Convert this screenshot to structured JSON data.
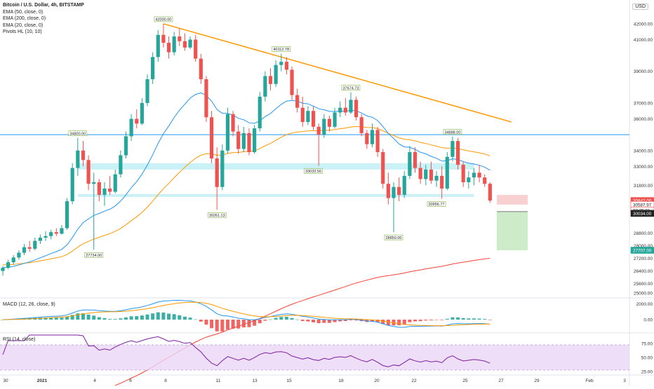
{
  "header": {
    "symbol_title": "Bitcoin / U.S. Dollar, 4h, BITSTAMP",
    "currency_button": "USD",
    "indicators": [
      "EMA (50, close, 0)",
      "EMA (200, close, 0)",
      "EMA (20, close, 0)",
      "Pivots HL (10, 10)"
    ]
  },
  "macd": {
    "label": "MACD (12, 26, close, 9)",
    "ticks": [
      "2000.00",
      "0.00"
    ]
  },
  "rsi": {
    "label": "RSI (14, close)",
    "ticks": [
      "75.00",
      "50.00",
      "25.00"
    ]
  },
  "colors": {
    "up": "#26a69a",
    "down": "#ef5350",
    "ema20": "#2196f3",
    "ema50": "#ff9800",
    "ema200": "#f44336",
    "trendline": "#ff9800",
    "hline": "#2196f3",
    "zone": "#b2ebf2",
    "rsi": "#7b1fa2",
    "rsi_band": "#ead6f5",
    "stop_zone": "#f8d0d0",
    "target_zone": "#cdebc9"
  },
  "chart_data": {
    "type": "candlestick",
    "title": "Bitcoin / U.S. Dollar, 4h, BITSTAMP",
    "y_ticks": [
      "42000.00",
      "41000.00",
      "39000.00",
      "37000.00",
      "36000.00",
      "34000.00",
      "33000.00",
      "31800.00",
      "28800.00",
      "28000.00",
      "27200.00",
      "26400.00",
      "25600.00",
      "25000.00"
    ],
    "ylim": [
      24700,
      43500
    ],
    "x_ticks": [
      "30",
      "2021",
      "4",
      "6",
      "8",
      "11",
      "13",
      "15",
      "18",
      "20",
      "22",
      "25",
      "27",
      "29",
      "Feb",
      "3"
    ],
    "price_labels": [
      {
        "value": 30842.0,
        "text": "30842.00",
        "bg": "#ef5350",
        "fg": "#ffffff"
      },
      {
        "value": 30587.97,
        "text": "30587.97",
        "bg": "#ffffff",
        "fg": "#222222",
        "border": "#ef5350"
      },
      {
        "value": 30230,
        "text": "02:25:01",
        "bg": "#ffffff",
        "fg": "#222222",
        "border": "#ef5350"
      },
      {
        "value": 30034.0,
        "text": "30034.00",
        "bg": "#222222",
        "fg": "#ffffff"
      },
      {
        "value": 27707.0,
        "text": "27707.00",
        "bg": "#26a69a",
        "fg": "#ffffff"
      }
    ],
    "pivot_labels": [
      {
        "x_index": 30,
        "value": 42000.0,
        "text": "42000.00",
        "pos": "above"
      },
      {
        "x_index": 52,
        "value": 40112.78,
        "text": "40112.78",
        "pos": "above"
      },
      {
        "x_index": 65,
        "value": 37674.73,
        "text": "37674.73",
        "pos": "above"
      },
      {
        "x_index": 84,
        "value": 34888.0,
        "text": "34888.00",
        "pos": "above"
      },
      {
        "x_index": 14,
        "value": 34800.0,
        "text": "34800.00",
        "pos": "above"
      },
      {
        "x_index": 17,
        "value": 27734.0,
        "text": "27734.00",
        "pos": "below"
      },
      {
        "x_index": 40,
        "value": 30261.13,
        "text": "30261.13",
        "pos": "below"
      },
      {
        "x_index": 58,
        "value": 33033.56,
        "text": "33033.56",
        "pos": "below"
      },
      {
        "x_index": 73,
        "value": 28850.0,
        "text": "28850.00",
        "pos": "below"
      },
      {
        "x_index": 81,
        "value": 30956.77,
        "text": "30956.77",
        "pos": "below"
      }
    ],
    "horizontal_line": 35000,
    "trendline": [
      {
        "x_index": 30,
        "value": 42000
      },
      {
        "x_index": 95,
        "value": 35800
      }
    ],
    "zones": [
      {
        "from": 32800,
        "to": 33200
      },
      {
        "from": 31100,
        "to": 31250
      }
    ],
    "position_tool": {
      "entry": 30587.97,
      "stop": 30842.0,
      "target": 27707.0
    },
    "candles": [
      {
        "o": 26400,
        "h": 26700,
        "l": 26100,
        "c": 26600
      },
      {
        "o": 26600,
        "h": 27100,
        "l": 26500,
        "c": 26950
      },
      {
        "o": 26950,
        "h": 27400,
        "l": 26800,
        "c": 27250
      },
      {
        "o": 27250,
        "h": 27700,
        "l": 27100,
        "c": 27550
      },
      {
        "o": 27550,
        "h": 28100,
        "l": 27400,
        "c": 27900
      },
      {
        "o": 27900,
        "h": 28300,
        "l": 27600,
        "c": 27800
      },
      {
        "o": 27800,
        "h": 28500,
        "l": 27700,
        "c": 28300
      },
      {
        "o": 28300,
        "h": 28700,
        "l": 28100,
        "c": 28500
      },
      {
        "o": 28500,
        "h": 28900,
        "l": 28300,
        "c": 28600
      },
      {
        "o": 28600,
        "h": 29000,
        "l": 28400,
        "c": 28850
      },
      {
        "o": 28850,
        "h": 29100,
        "l": 28600,
        "c": 28750
      },
      {
        "o": 28750,
        "h": 29300,
        "l": 28700,
        "c": 29100
      },
      {
        "o": 29100,
        "h": 31000,
        "l": 29000,
        "c": 30800
      },
      {
        "o": 30800,
        "h": 33200,
        "l": 30600,
        "c": 32900
      },
      {
        "o": 32900,
        "h": 34800,
        "l": 32400,
        "c": 34000
      },
      {
        "o": 34000,
        "h": 34600,
        "l": 33000,
        "c": 33400
      },
      {
        "o": 33400,
        "h": 33700,
        "l": 31500,
        "c": 31900
      },
      {
        "o": 31900,
        "h": 32600,
        "l": 27734,
        "c": 32000
      },
      {
        "o": 32000,
        "h": 32200,
        "l": 30800,
        "c": 31200
      },
      {
        "o": 31200,
        "h": 32000,
        "l": 30500,
        "c": 31600
      },
      {
        "o": 31600,
        "h": 32400,
        "l": 31200,
        "c": 31400
      },
      {
        "o": 31400,
        "h": 32800,
        "l": 31300,
        "c": 32500
      },
      {
        "o": 32500,
        "h": 34000,
        "l": 32300,
        "c": 33700
      },
      {
        "o": 33700,
        "h": 35200,
        "l": 33500,
        "c": 34900
      },
      {
        "o": 34900,
        "h": 36300,
        "l": 34600,
        "c": 36000
      },
      {
        "o": 36000,
        "h": 36600,
        "l": 35400,
        "c": 35700
      },
      {
        "o": 35700,
        "h": 37300,
        "l": 35600,
        "c": 37000
      },
      {
        "o": 37000,
        "h": 38800,
        "l": 36800,
        "c": 38500
      },
      {
        "o": 38500,
        "h": 40200,
        "l": 38200,
        "c": 39900
      },
      {
        "o": 39900,
        "h": 41600,
        "l": 39600,
        "c": 41300
      },
      {
        "o": 41300,
        "h": 42000,
        "l": 40500,
        "c": 40800
      },
      {
        "o": 40800,
        "h": 41200,
        "l": 39800,
        "c": 40200
      },
      {
        "o": 40200,
        "h": 41500,
        "l": 40000,
        "c": 41200
      },
      {
        "o": 41200,
        "h": 41700,
        "l": 40600,
        "c": 40900
      },
      {
        "o": 40900,
        "h": 41400,
        "l": 40300,
        "c": 40500
      },
      {
        "o": 40500,
        "h": 41200,
        "l": 40400,
        "c": 41000
      },
      {
        "o": 41000,
        "h": 41300,
        "l": 39600,
        "c": 39800
      },
      {
        "o": 39800,
        "h": 40100,
        "l": 38200,
        "c": 38500
      },
      {
        "o": 38500,
        "h": 38700,
        "l": 35800,
        "c": 36100
      },
      {
        "o": 36100,
        "h": 36500,
        "l": 33200,
        "c": 33500
      },
      {
        "o": 33500,
        "h": 34200,
        "l": 30261.13,
        "c": 31700
      },
      {
        "o": 31700,
        "h": 34400,
        "l": 31500,
        "c": 34000
      },
      {
        "o": 34000,
        "h": 36700,
        "l": 33800,
        "c": 36300
      },
      {
        "o": 36300,
        "h": 36500,
        "l": 34900,
        "c": 35200
      },
      {
        "o": 35200,
        "h": 35600,
        "l": 33800,
        "c": 34100
      },
      {
        "o": 34100,
        "h": 35500,
        "l": 33900,
        "c": 35100
      },
      {
        "o": 35100,
        "h": 35400,
        "l": 33700,
        "c": 33900
      },
      {
        "o": 33900,
        "h": 35600,
        "l": 33800,
        "c": 35400
      },
      {
        "o": 35400,
        "h": 37700,
        "l": 35200,
        "c": 37400
      },
      {
        "o": 37400,
        "h": 39000,
        "l": 37100,
        "c": 38700
      },
      {
        "o": 38700,
        "h": 39200,
        "l": 37800,
        "c": 38200
      },
      {
        "o": 38200,
        "h": 39700,
        "l": 38000,
        "c": 39400
      },
      {
        "o": 39400,
        "h": 40112.78,
        "l": 39000,
        "c": 39600
      },
      {
        "o": 39600,
        "h": 39900,
        "l": 38800,
        "c": 39100
      },
      {
        "o": 39100,
        "h": 39300,
        "l": 37200,
        "c": 37500
      },
      {
        "o": 37500,
        "h": 37900,
        "l": 36400,
        "c": 36700
      },
      {
        "o": 36700,
        "h": 37400,
        "l": 35500,
        "c": 35800
      },
      {
        "o": 35800,
        "h": 36800,
        "l": 35600,
        "c": 36500
      },
      {
        "o": 36500,
        "h": 36800,
        "l": 35300,
        "c": 35500
      },
      {
        "o": 35500,
        "h": 35700,
        "l": 33033.56,
        "c": 35000
      },
      {
        "o": 35000,
        "h": 36300,
        "l": 34800,
        "c": 36000
      },
      {
        "o": 36000,
        "h": 36200,
        "l": 35200,
        "c": 35500
      },
      {
        "o": 35500,
        "h": 36700,
        "l": 35400,
        "c": 36400
      },
      {
        "o": 36400,
        "h": 37100,
        "l": 36100,
        "c": 36700
      },
      {
        "o": 36700,
        "h": 37300,
        "l": 36200,
        "c": 36400
      },
      {
        "o": 36400,
        "h": 37674.73,
        "l": 36300,
        "c": 37200
      },
      {
        "o": 37200,
        "h": 37400,
        "l": 35900,
        "c": 36100
      },
      {
        "o": 36100,
        "h": 36300,
        "l": 34900,
        "c": 35100
      },
      {
        "o": 35100,
        "h": 35300,
        "l": 34100,
        "c": 34400
      },
      {
        "o": 34400,
        "h": 35700,
        "l": 34200,
        "c": 35300
      },
      {
        "o": 35300,
        "h": 35500,
        "l": 33600,
        "c": 33900
      },
      {
        "o": 33900,
        "h": 34100,
        "l": 31600,
        "c": 31900
      },
      {
        "o": 31900,
        "h": 32600,
        "l": 30600,
        "c": 31000
      },
      {
        "o": 31000,
        "h": 32000,
        "l": 28850,
        "c": 31700
      },
      {
        "o": 31700,
        "h": 32300,
        "l": 30800,
        "c": 31200
      },
      {
        "o": 31200,
        "h": 32700,
        "l": 31000,
        "c": 32400
      },
      {
        "o": 32400,
        "h": 34300,
        "l": 32200,
        "c": 33900
      },
      {
        "o": 33900,
        "h": 34200,
        "l": 32600,
        "c": 32900
      },
      {
        "o": 32900,
        "h": 33300,
        "l": 31900,
        "c": 32200
      },
      {
        "o": 32200,
        "h": 33100,
        "l": 31800,
        "c": 32800
      },
      {
        "o": 32800,
        "h": 33300,
        "l": 31900,
        "c": 32100
      },
      {
        "o": 32100,
        "h": 32700,
        "l": 31700,
        "c": 32400
      },
      {
        "o": 32400,
        "h": 33000,
        "l": 30956.77,
        "c": 31600
      },
      {
        "o": 31600,
        "h": 33900,
        "l": 31500,
        "c": 33600
      },
      {
        "o": 33600,
        "h": 34888,
        "l": 33300,
        "c": 34600
      },
      {
        "o": 34600,
        "h": 34800,
        "l": 32800,
        "c": 33100
      },
      {
        "o": 33100,
        "h": 33300,
        "l": 31700,
        "c": 32000
      },
      {
        "o": 32000,
        "h": 32700,
        "l": 31600,
        "c": 32300
      },
      {
        "o": 32300,
        "h": 32900,
        "l": 31800,
        "c": 32600
      },
      {
        "o": 32600,
        "h": 33100,
        "l": 32000,
        "c": 32300
      },
      {
        "o": 32300,
        "h": 32500,
        "l": 31700,
        "c": 31900
      },
      {
        "o": 31900,
        "h": 32000,
        "l": 30700,
        "c": 30842
      }
    ]
  }
}
